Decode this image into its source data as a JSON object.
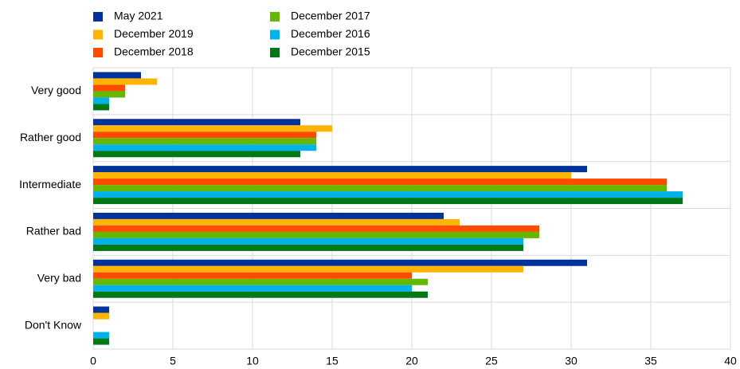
{
  "chart_data": {
    "type": "hbar",
    "categories": [
      "Very good",
      "Rather good",
      "Intermediate",
      "Rather bad",
      "Very bad",
      "Don't Know"
    ],
    "series": [
      {
        "name": "May 2021",
        "color": "#003299",
        "values": [
          3,
          13,
          31,
          22,
          31,
          1
        ]
      },
      {
        "name": "December 2019",
        "color": "#ffb400",
        "values": [
          4,
          15,
          30,
          23,
          27,
          1
        ]
      },
      {
        "name": "December 2018",
        "color": "#ff4b00",
        "values": [
          2,
          14,
          36,
          28,
          20,
          0
        ]
      },
      {
        "name": "December 2017",
        "color": "#65b800",
        "values": [
          2,
          14,
          36,
          28,
          21,
          0
        ]
      },
      {
        "name": "December 2016",
        "color": "#00b1ea",
        "values": [
          1,
          14,
          37,
          27,
          20,
          1
        ]
      },
      {
        "name": "December 2015",
        "color": "#007816",
        "values": [
          1,
          13,
          37,
          27,
          21,
          1
        ]
      }
    ],
    "xlim": [
      0,
      40
    ],
    "xticks": [
      0,
      5,
      10,
      15,
      20,
      25,
      30,
      35,
      40
    ],
    "grid": true
  }
}
